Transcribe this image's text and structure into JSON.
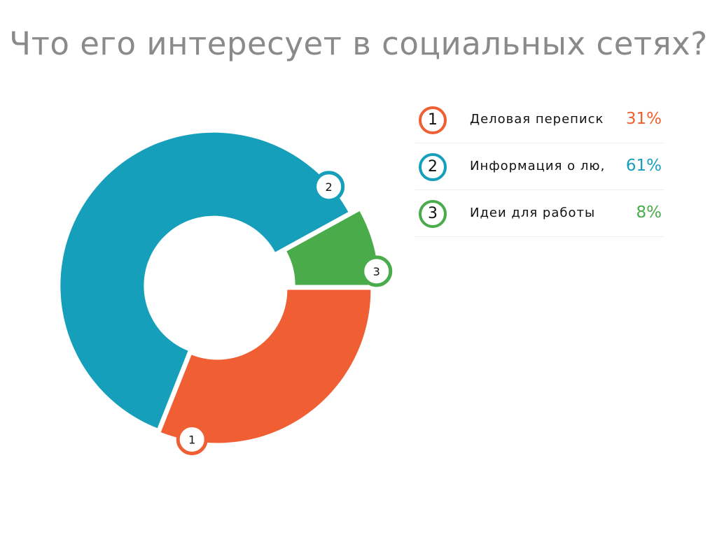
{
  "title": "Что его интересует в социальных сетях?",
  "chart_data": {
    "type": "pie",
    "variant": "donut",
    "slices": [
      {
        "id": "1",
        "label": "Деловая переписка",
        "display_label": "Деловая переписк",
        "value": 31,
        "value_label": "31%",
        "color": "#f05f33"
      },
      {
        "id": "2",
        "label": "Информация о лю,",
        "display_label": "Информация о лю,",
        "value": 61,
        "value_label": "61%",
        "color": "#169fbb"
      },
      {
        "id": "3",
        "label": "Идеи для работы",
        "display_label": "Идеи для работы",
        "value": 8,
        "value_label": "8%",
        "color": "#4aab4a"
      }
    ],
    "legend_position": "right"
  },
  "colors": {
    "title": "#8a8a8a",
    "background": "#ffffff"
  }
}
